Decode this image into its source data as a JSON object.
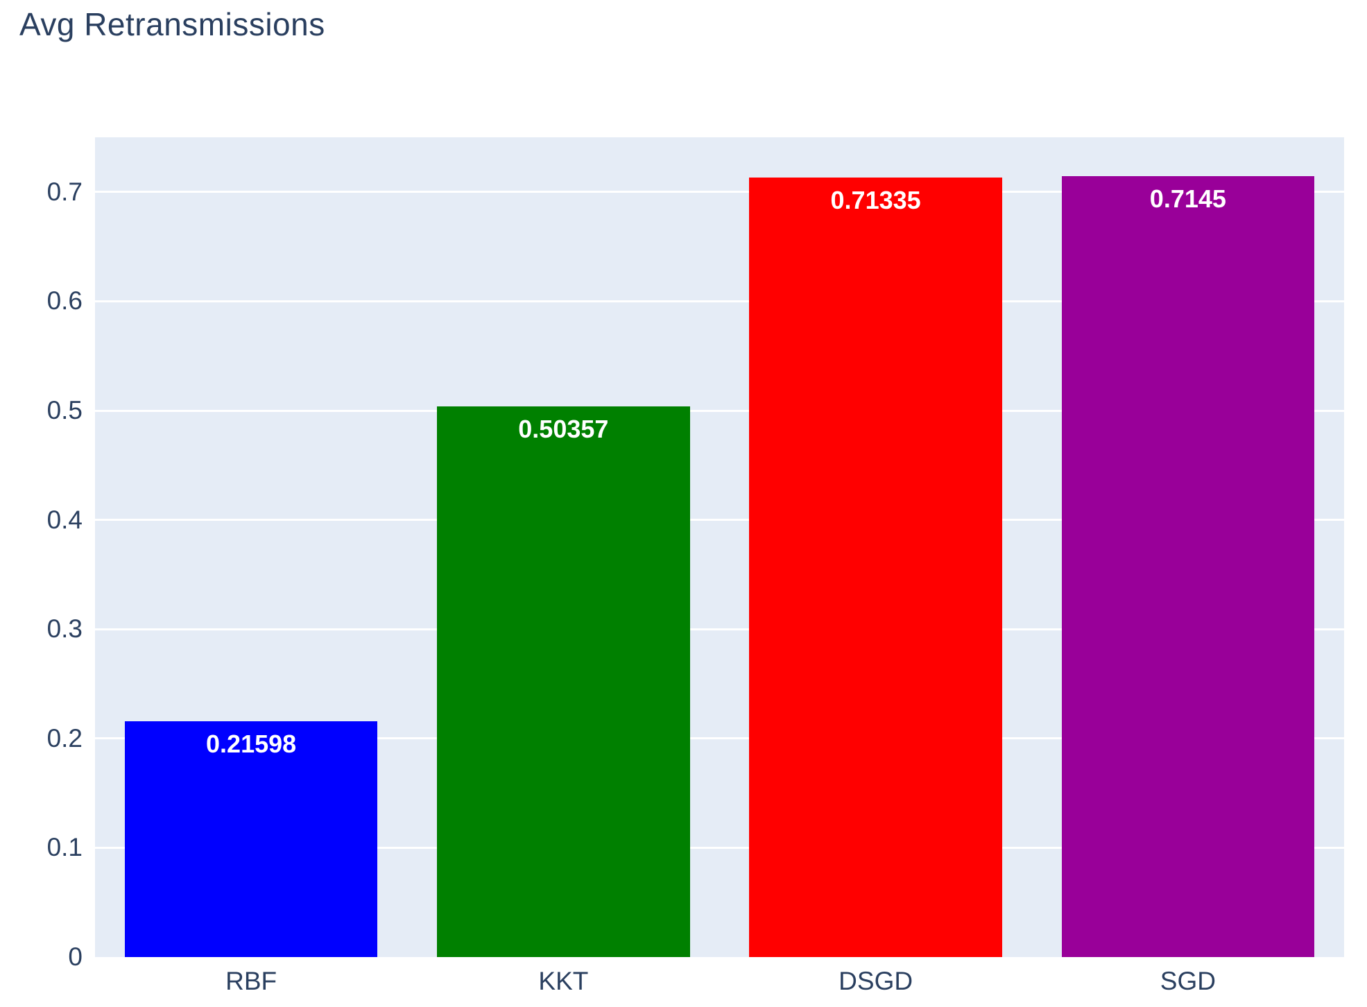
{
  "chart_data": {
    "type": "bar",
    "title": "Avg Retransmissions",
    "categories": [
      "RBF",
      "KKT",
      "DSGD",
      "SGD"
    ],
    "values": [
      0.21598,
      0.50357,
      0.71335,
      0.7145
    ],
    "value_labels": [
      "0.21598",
      "0.50357",
      "0.71335",
      "0.7145"
    ],
    "bar_colors": [
      "#0000ff",
      "#008000",
      "#ff0000",
      "#990099"
    ],
    "xlabel": "",
    "ylabel": "",
    "ylim": [
      0,
      0.75
    ],
    "yticks": [
      0,
      0.1,
      0.2,
      0.3,
      0.4,
      0.5,
      0.6,
      0.7
    ],
    "ytick_labels": [
      "0",
      "0.1",
      "0.2",
      "0.3",
      "0.4",
      "0.5",
      "0.6",
      "0.7"
    ],
    "grid": true,
    "legend": false,
    "colors": {
      "plot_background": "#e5ecf6",
      "page_background": "#ffffff",
      "gridline": "#ffffff",
      "axis_text": "#2a3f5f",
      "title_text": "#2a3f5f",
      "bar_label_text": "#ffffff"
    }
  }
}
